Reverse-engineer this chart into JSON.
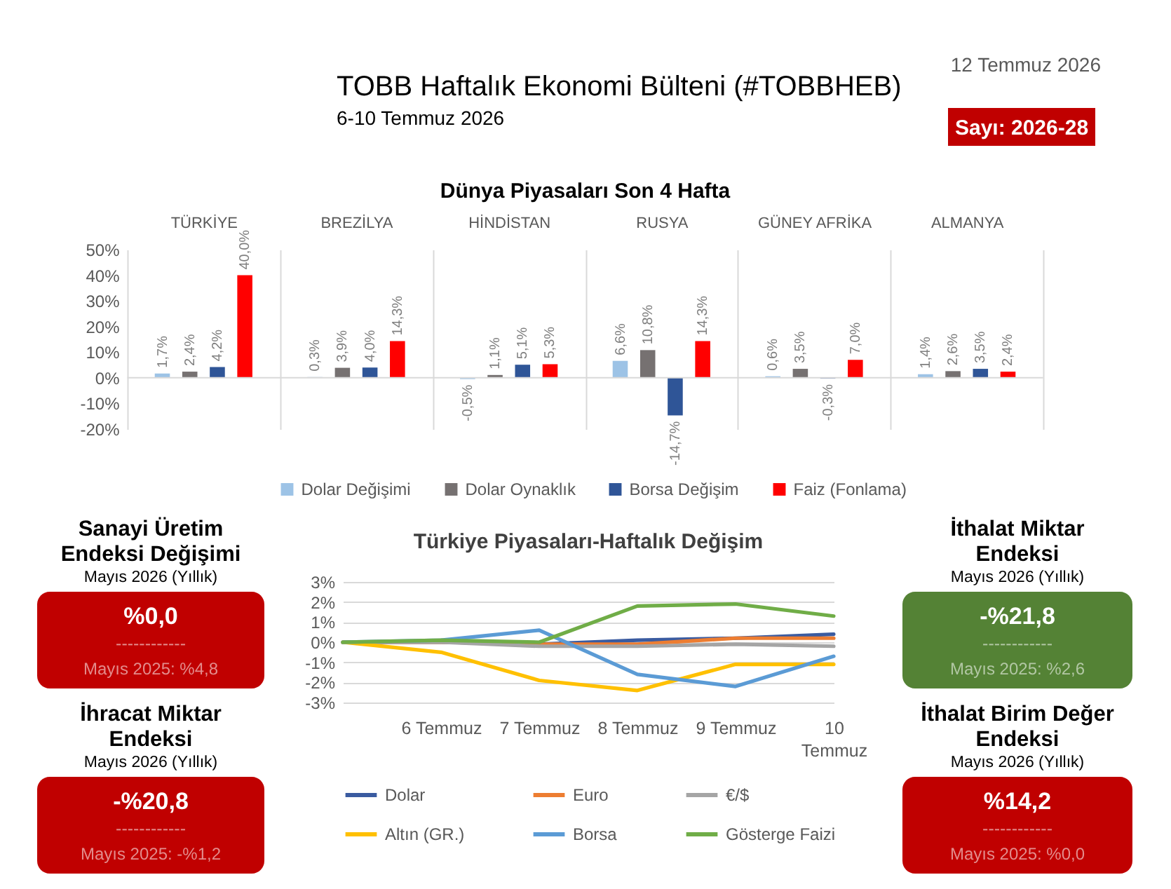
{
  "chart_data": [
    {
      "type": "other",
      "title": "TOBB Haftalık Ekonomi Bülteni (#TOBBHEB)",
      "subtitle": "6-10 Temmuz 2026",
      "annotations": [
        "12 Temmuz 2026",
        "Sayı: 2026-28"
      ],
      "color": "#c00000"
    },
    {
      "type": "bar",
      "title": "Dünya Piyasaları Son 4 Hafta",
      "categories": [
        "TÜRKİYE",
        "BREZİLYA",
        "HİNDİSTAN",
        "RUSYA",
        "GÜNEY AFRİKA",
        "ALMANYA"
      ],
      "series": [
        {
          "name": "Dolar Değişimi",
          "color": "#9dc3e6",
          "values": [
            1.7,
            0.3,
            -0.5,
            6.6,
            0.6,
            1.4
          ],
          "value_labels": [
            "1,7%",
            "0,3%",
            "-0,5%",
            "6,6%",
            "0,6%",
            "1,4%"
          ]
        },
        {
          "name": "Dolar Oynaklık",
          "color": "#767171",
          "values": [
            2.4,
            3.9,
            1.1,
            10.8,
            3.5,
            2.6
          ],
          "value_labels": [
            "2,4%",
            "3,9%",
            "1,1%",
            "10,8%",
            "3,5%",
            "2,6%"
          ]
        },
        {
          "name": "Borsa Değişim",
          "color": "#2f5597",
          "values": [
            4.2,
            4.0,
            5.1,
            -14.7,
            -0.3,
            3.5
          ],
          "value_labels": [
            "4,2%",
            "4,0%",
            "5,1%",
            "-14,7%",
            "-0,3%",
            "3,5%"
          ]
        },
        {
          "name": "Faiz (Fonlama)",
          "color": "#ff0000",
          "values": [
            40.0,
            14.3,
            5.3,
            14.3,
            7.0,
            2.4
          ],
          "value_labels": [
            "40,0%",
            "14,3%",
            "5,3%",
            "14,3%",
            "7,0%",
            "2,4%"
          ]
        }
      ],
      "ylim": [
        -20,
        50
      ],
      "yticks": [
        {
          "value": -20,
          "label": "-20%"
        },
        {
          "value": -10,
          "label": "-10%"
        },
        {
          "value": 0,
          "label": "0%"
        },
        {
          "value": 10,
          "label": "10%"
        },
        {
          "value": 20,
          "label": "20%"
        },
        {
          "value": 30,
          "label": "30%"
        },
        {
          "value": 40,
          "label": "40%"
        },
        {
          "value": 50,
          "label": "50%"
        }
      ],
      "grid": "x",
      "legend": "bottom",
      "ref_lines": [
        {
          "axis": "y",
          "value": 0,
          "color": "#d9d9d9"
        }
      ]
    },
    {
      "type": "other",
      "title": "Sanayi Üretim Endeksi Değişimi",
      "subtitle": "Mayıs 2026 (Yıllık)",
      "annotations": [
        "%0,0",
        "------------",
        "Mayıs 2025: %4,8"
      ],
      "color": "#c00000"
    },
    {
      "type": "other",
      "title": "İhracat Miktar Endeksi",
      "subtitle": "Mayıs 2026 (Yıllık)",
      "annotations": [
        "-%20,8",
        "------------",
        "Mayıs 2025: -%1,2"
      ],
      "color": "#c00000"
    },
    {
      "type": "line",
      "title": "Türkiye Piyasaları-Haftalık Değişim",
      "categories": [
        null,
        "6 Temmuz",
        "7 Temmuz",
        "8 Temmuz",
        "9 Temmuz",
        "10 Temmuz"
      ],
      "series": [
        {
          "name": "Dolar",
          "color": "#3a5ba0",
          "values": [
            0,
            0.0,
            -0.1,
            0.1,
            0.2,
            0.4
          ]
        },
        {
          "name": "Euro",
          "color": "#ed7d31",
          "values": [
            0,
            0.0,
            -0.1,
            -0.1,
            0.2,
            0.2
          ]
        },
        {
          "name": "€/$",
          "color": "#a5a5a5",
          "values": [
            0,
            0.0,
            -0.2,
            -0.2,
            -0.1,
            -0.2
          ]
        },
        {
          "name": "Altın (GR.)",
          "color": "#ffc000",
          "values": [
            0,
            -0.5,
            -1.9,
            -2.4,
            -1.1,
            -1.1
          ]
        },
        {
          "name": "Borsa",
          "color": "#5b9bd5",
          "values": [
            0,
            0.1,
            0.6,
            -1.6,
            -2.2,
            -0.7
          ]
        },
        {
          "name": "Gösterge Faizi",
          "color": "#70ad47",
          "values": [
            0,
            0.1,
            0.0,
            1.8,
            1.9,
            1.3
          ]
        }
      ],
      "ylim": [
        -3,
        3
      ],
      "yticks": [
        {
          "value": -3,
          "label": "-3%"
        },
        {
          "value": -2,
          "label": "-2%"
        },
        {
          "value": -1,
          "label": "-1%"
        },
        {
          "value": 0,
          "label": "0%"
        },
        {
          "value": 1,
          "label": "1%"
        },
        {
          "value": 2,
          "label": "2%"
        },
        {
          "value": 3,
          "label": "3%"
        }
      ],
      "grid": "y",
      "legend": "bottom"
    },
    {
      "type": "other",
      "title": "İthalat Miktar Endeksi",
      "subtitle": "Mayıs 2026 (Yıllık)",
      "annotations": [
        "-%21,8",
        "------------",
        "Mayıs 2025: %2,6"
      ],
      "color": "#548235"
    },
    {
      "type": "other",
      "title": "İthalat Birim Değer Endeksi",
      "subtitle": "Mayıs 2026 (Yıllık)",
      "annotations": [
        "%14,2",
        "------------",
        "Mayıs 2025: %0,0"
      ],
      "color": "#c00000"
    }
  ]
}
